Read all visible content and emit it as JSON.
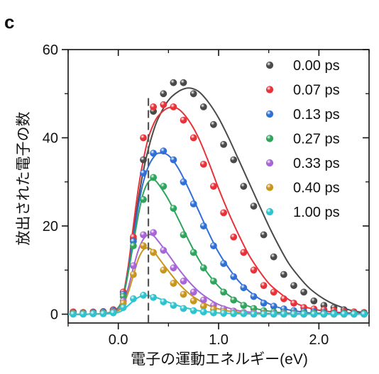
{
  "panel_label": "c",
  "chart_data": {
    "type": "scatter",
    "title": "",
    "xlabel": "電子の運動エネルギー(eV)",
    "ylabel": "放出された電子の数",
    "xlim": [
      -0.5,
      2.5
    ],
    "ylim": [
      -2,
      60
    ],
    "xticks": [
      0.0,
      1.0,
      2.0
    ],
    "xtick_labels": [
      "0.0",
      "1.0",
      "2.0"
    ],
    "yticks": [
      0,
      20,
      40,
      60
    ],
    "ytick_labels": [
      "0",
      "20",
      "40",
      "60"
    ],
    "vline_x": 0.3,
    "legend_position": "top-right",
    "grid": false,
    "series": [
      {
        "name": "0.00 ps",
        "color": "#4a4a4a",
        "x": [
          -0.45,
          -0.35,
          -0.25,
          -0.15,
          -0.05,
          0.05,
          0.15,
          0.25,
          0.35,
          0.45,
          0.55,
          0.65,
          0.75,
          0.85,
          0.95,
          1.05,
          1.15,
          1.25,
          1.35,
          1.45,
          1.55,
          1.65,
          1.75,
          1.85,
          1.95,
          2.05,
          2.15,
          2.25,
          2.35,
          2.45
        ],
        "y": [
          0.5,
          0.3,
          0.4,
          0.5,
          1.0,
          5.0,
          17.0,
          35.0,
          46.0,
          50.0,
          52.5,
          52.5,
          50.0,
          47.0,
          43.0,
          38.5,
          35.0,
          29.0,
          24.5,
          18.0,
          13.0,
          9.0,
          6.5,
          5.0,
          3.0,
          2.0,
          1.5,
          1.0,
          0.5,
          0.3
        ],
        "fit_x": [
          -0.5,
          -0.3,
          -0.1,
          0.0,
          0.05,
          0.1,
          0.15,
          0.2,
          0.25,
          0.3,
          0.35,
          0.4,
          0.5,
          0.6,
          0.7,
          0.8,
          0.9,
          1.0,
          1.1,
          1.2,
          1.3,
          1.4,
          1.5,
          1.6,
          1.7,
          1.8,
          1.9,
          2.0,
          2.1,
          2.2,
          2.3,
          2.4,
          2.5
        ],
        "fit_y": [
          0.0,
          0.0,
          0.3,
          1.5,
          4.0,
          10.0,
          18.0,
          26.0,
          32.5,
          37.5,
          41.5,
          44.5,
          48.5,
          50.5,
          51.3,
          50.5,
          48.0,
          44.5,
          40.0,
          35.0,
          30.0,
          25.0,
          20.0,
          15.5,
          11.5,
          8.5,
          6.0,
          4.2,
          2.8,
          1.8,
          1.0,
          0.5,
          0.2
        ]
      },
      {
        "name": "0.07 ps",
        "color": "#e8323a",
        "x": [
          -0.45,
          -0.35,
          -0.25,
          -0.15,
          -0.05,
          0.05,
          0.15,
          0.25,
          0.35,
          0.45,
          0.55,
          0.65,
          0.75,
          0.85,
          0.95,
          1.05,
          1.15,
          1.25,
          1.35,
          1.45,
          1.55,
          1.65,
          1.75,
          1.85,
          1.95,
          2.05,
          2.15,
          2.25,
          2.35,
          2.45
        ],
        "y": [
          0.5,
          0.4,
          0.5,
          0.6,
          1.0,
          5.0,
          17.5,
          40.0,
          47.0,
          47.5,
          47.0,
          44.0,
          40.0,
          34.0,
          29.0,
          23.0,
          17.5,
          14.0,
          10.0,
          6.5,
          5.0,
          3.5,
          2.5,
          1.5,
          1.2,
          1.0,
          0.8,
          0.6,
          0.5,
          0.4
        ],
        "fit_x": [
          -0.5,
          -0.3,
          -0.1,
          0.0,
          0.05,
          0.1,
          0.15,
          0.2,
          0.25,
          0.3,
          0.35,
          0.4,
          0.5,
          0.6,
          0.7,
          0.8,
          0.9,
          1.0,
          1.1,
          1.2,
          1.3,
          1.4,
          1.5,
          1.6,
          1.7,
          1.8,
          1.9,
          2.0,
          2.2,
          2.5
        ],
        "fit_y": [
          0.0,
          0.0,
          0.3,
          1.5,
          4.5,
          11.0,
          20.0,
          28.5,
          35.0,
          40.0,
          43.0,
          45.0,
          46.8,
          46.5,
          44.0,
          40.0,
          34.5,
          28.5,
          23.0,
          18.0,
          13.5,
          10.0,
          7.0,
          5.0,
          3.3,
          2.2,
          1.4,
          0.9,
          0.4,
          0.1
        ]
      },
      {
        "name": "0.13 ps",
        "color": "#2f6fd6",
        "x": [
          -0.45,
          -0.35,
          -0.25,
          -0.15,
          -0.05,
          0.05,
          0.15,
          0.25,
          0.35,
          0.45,
          0.55,
          0.65,
          0.75,
          0.85,
          0.95,
          1.05,
          1.15,
          1.25,
          1.35,
          1.45,
          1.55,
          1.65,
          1.75,
          1.85,
          1.95,
          2.05,
          2.15,
          2.25,
          2.35,
          2.45
        ],
        "y": [
          0.3,
          0.3,
          0.4,
          0.5,
          0.8,
          4.5,
          16.5,
          32.0,
          36.5,
          37.0,
          35.0,
          30.0,
          25.0,
          20.0,
          15.5,
          11.5,
          8.5,
          6.0,
          4.0,
          2.5,
          1.8,
          1.2,
          0.8,
          0.6,
          0.5,
          0.4,
          0.3,
          0.3,
          0.2,
          0.2
        ],
        "fit_x": [
          -0.5,
          -0.3,
          -0.1,
          0.0,
          0.05,
          0.1,
          0.15,
          0.2,
          0.25,
          0.3,
          0.35,
          0.4,
          0.5,
          0.6,
          0.7,
          0.8,
          0.9,
          1.0,
          1.1,
          1.2,
          1.3,
          1.4,
          1.5,
          1.6,
          1.8,
          2.0,
          2.5
        ],
        "fit_y": [
          0.0,
          0.0,
          0.3,
          1.5,
          4.0,
          10.0,
          17.5,
          24.5,
          30.0,
          33.5,
          35.5,
          36.5,
          36.0,
          33.0,
          28.5,
          23.5,
          18.5,
          14.0,
          10.5,
          7.5,
          5.3,
          3.6,
          2.4,
          1.5,
          0.6,
          0.2,
          0.0
        ]
      },
      {
        "name": "0.27 ps",
        "color": "#2fa45c",
        "x": [
          -0.45,
          -0.35,
          -0.25,
          -0.15,
          -0.05,
          0.05,
          0.15,
          0.25,
          0.35,
          0.45,
          0.55,
          0.65,
          0.75,
          0.85,
          0.95,
          1.05,
          1.15,
          1.25,
          1.35,
          1.45,
          1.55,
          1.65,
          1.75,
          1.85,
          1.95,
          2.05,
          2.15,
          2.25,
          2.35,
          2.45
        ],
        "y": [
          0.2,
          0.2,
          0.3,
          0.3,
          0.6,
          4.0,
          15.5,
          26.0,
          31.0,
          29.0,
          24.0,
          18.0,
          14.0,
          10.5,
          7.5,
          5.0,
          3.2,
          2.0,
          1.3,
          0.8,
          0.5,
          0.4,
          0.3,
          0.2,
          0.2,
          0.1,
          0.1,
          0.1,
          0.1,
          0.1
        ],
        "fit_x": [
          -0.5,
          -0.3,
          -0.1,
          0.0,
          0.05,
          0.1,
          0.15,
          0.2,
          0.25,
          0.3,
          0.35,
          0.4,
          0.5,
          0.6,
          0.7,
          0.8,
          0.9,
          1.0,
          1.1,
          1.2,
          1.3,
          1.4,
          1.6,
          1.8,
          2.0,
          2.5
        ],
        "fit_y": [
          0.0,
          0.0,
          0.3,
          1.5,
          4.0,
          9.5,
          16.0,
          22.5,
          27.5,
          30.0,
          30.5,
          29.5,
          26.0,
          21.5,
          16.8,
          12.5,
          9.0,
          6.3,
          4.3,
          2.8,
          1.8,
          1.1,
          0.4,
          0.15,
          0.05,
          0.0
        ]
      },
      {
        "name": "0.33 ps",
        "color": "#a765d6",
        "x": [
          -0.45,
          -0.35,
          -0.25,
          -0.15,
          -0.05,
          0.05,
          0.15,
          0.25,
          0.35,
          0.45,
          0.55,
          0.65,
          0.75,
          0.85,
          0.95,
          1.05,
          1.15,
          1.25,
          1.35,
          1.45,
          1.55,
          1.65,
          1.75,
          1.85,
          1.95,
          2.05,
          2.15,
          2.25,
          2.35,
          2.45
        ],
        "y": [
          0.1,
          0.1,
          0.2,
          0.2,
          0.5,
          3.0,
          11.0,
          18.0,
          18.5,
          14.5,
          10.5,
          7.5,
          5.0,
          3.2,
          2.0,
          1.2,
          0.7,
          0.4,
          0.3,
          0.2,
          0.1,
          0.1,
          0.1,
          0.0,
          0.0,
          0.0,
          0.0,
          0.0,
          0.0,
          0.0
        ],
        "fit_x": [
          -0.5,
          -0.3,
          -0.1,
          0.0,
          0.05,
          0.1,
          0.15,
          0.2,
          0.25,
          0.3,
          0.35,
          0.4,
          0.5,
          0.6,
          0.7,
          0.8,
          0.9,
          1.0,
          1.1,
          1.2,
          1.4,
          1.6,
          2.0,
          2.5
        ],
        "fit_y": [
          0.0,
          0.0,
          0.2,
          1.0,
          2.8,
          6.0,
          10.5,
          14.5,
          17.0,
          18.0,
          17.8,
          16.5,
          13.5,
          10.3,
          7.5,
          5.2,
          3.5,
          2.2,
          1.4,
          0.8,
          0.3,
          0.1,
          0.0,
          0.0
        ]
      },
      {
        "name": "0.40 ps",
        "color": "#c8961e",
        "x": [
          -0.45,
          -0.35,
          -0.25,
          -0.15,
          -0.05,
          0.05,
          0.15,
          0.25,
          0.35,
          0.45,
          0.55,
          0.65,
          0.75,
          0.85,
          0.95,
          1.05,
          1.15,
          1.25,
          1.35,
          1.45,
          1.55,
          1.65,
          1.75,
          1.85,
          1.95,
          2.05,
          2.15,
          2.25,
          2.35,
          2.45
        ],
        "y": [
          0.1,
          0.1,
          0.1,
          0.2,
          0.4,
          2.5,
          9.0,
          15.5,
          14.0,
          10.0,
          7.0,
          4.5,
          3.0,
          1.8,
          1.1,
          0.6,
          0.3,
          0.2,
          0.1,
          0.1,
          0.0,
          0.0,
          0.0,
          0.0,
          0.0,
          0.0,
          0.0,
          0.0,
          0.0,
          0.0
        ],
        "fit_x": [
          -0.5,
          -0.3,
          -0.1,
          0.0,
          0.05,
          0.1,
          0.15,
          0.2,
          0.25,
          0.3,
          0.35,
          0.4,
          0.5,
          0.6,
          0.7,
          0.8,
          0.9,
          1.0,
          1.1,
          1.2,
          1.4,
          1.6,
          2.0,
          2.5
        ],
        "fit_y": [
          0.0,
          0.0,
          0.2,
          0.8,
          2.2,
          5.0,
          8.8,
          12.5,
          14.6,
          15.0,
          14.3,
          12.8,
          9.8,
          7.0,
          4.8,
          3.2,
          2.0,
          1.2,
          0.7,
          0.4,
          0.1,
          0.0,
          0.0,
          0.0
        ]
      },
      {
        "name": "1.00 ps",
        "color": "#2ec4cf",
        "x": [
          -0.45,
          -0.35,
          -0.25,
          -0.15,
          -0.05,
          0.05,
          0.15,
          0.25,
          0.35,
          0.45,
          0.55,
          0.65,
          0.75,
          0.85,
          0.95,
          1.05,
          1.15,
          1.25,
          1.35,
          1.45,
          1.55,
          1.65,
          1.75,
          1.85,
          1.95,
          2.05,
          2.15,
          2.25,
          2.35,
          2.45
        ],
        "y": [
          0.0,
          0.0,
          0.1,
          0.1,
          0.3,
          1.5,
          3.5,
          4.3,
          3.8,
          2.8,
          2.0,
          1.3,
          0.8,
          0.5,
          0.3,
          0.2,
          0.1,
          0.1,
          0.0,
          0.0,
          0.0,
          0.0,
          0.0,
          0.0,
          0.0,
          0.0,
          0.0,
          0.0,
          0.0,
          0.0
        ],
        "fit_x": [
          -0.5,
          -0.3,
          -0.1,
          0.0,
          0.05,
          0.1,
          0.15,
          0.2,
          0.25,
          0.3,
          0.35,
          0.4,
          0.5,
          0.6,
          0.7,
          0.8,
          0.9,
          1.0,
          1.2,
          1.5,
          2.0,
          2.5
        ],
        "fit_y": [
          0.0,
          0.0,
          0.1,
          0.4,
          1.0,
          2.0,
          3.0,
          3.8,
          4.2,
          4.2,
          4.0,
          3.6,
          2.7,
          1.9,
          1.3,
          0.8,
          0.5,
          0.3,
          0.1,
          0.0,
          0.0,
          0.0
        ]
      }
    ]
  }
}
